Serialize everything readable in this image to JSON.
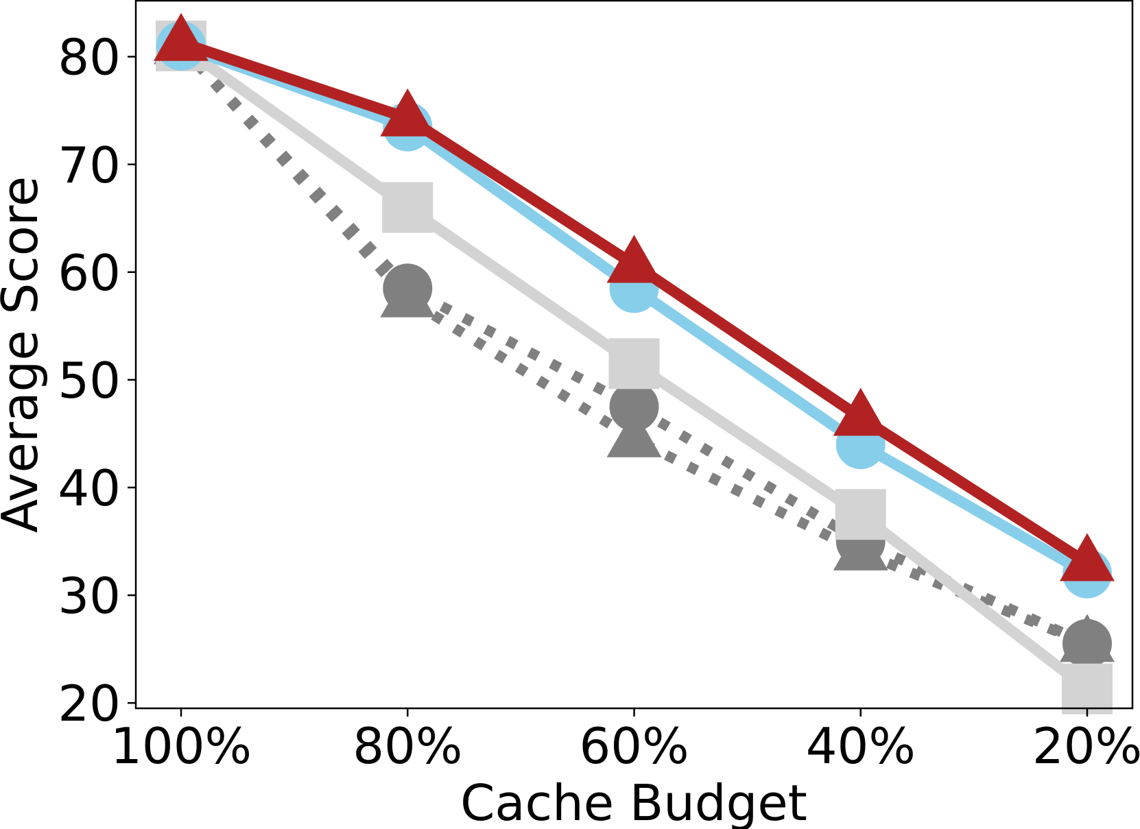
{
  "chart_data": {
    "type": "line",
    "xlabel": "Cache Budget",
    "ylabel": "Average Score",
    "categories": [
      "100%",
      "80%",
      "60%",
      "40%",
      "20%"
    ],
    "ylim": [
      19.5,
      85.2
    ],
    "yticks": [
      20,
      30,
      40,
      50,
      60,
      70,
      80
    ],
    "grid": false,
    "legend": "none",
    "series": [
      {
        "values": [
          81,
          58.5,
          47.5,
          35,
          25.5
        ],
        "color": "#808080",
        "style": "dotted",
        "marker": "circle"
      },
      {
        "values": [
          81,
          57.5,
          44.5,
          34,
          25.5
        ],
        "color": "#808080",
        "style": "dotted",
        "marker": "triangle"
      },
      {
        "values": [
          81,
          66,
          51.5,
          37.5,
          21.3
        ],
        "color": "#d3d3d3",
        "style": "solid",
        "marker": "square"
      },
      {
        "values": [
          81,
          73.5,
          58.5,
          44,
          32
        ],
        "color": "#87ceeb",
        "style": "solid",
        "marker": "circle"
      },
      {
        "values": [
          81.3,
          74.3,
          60.7,
          46.5,
          33
        ],
        "color": "#b22222",
        "style": "solid",
        "marker": "triangle"
      }
    ]
  }
}
